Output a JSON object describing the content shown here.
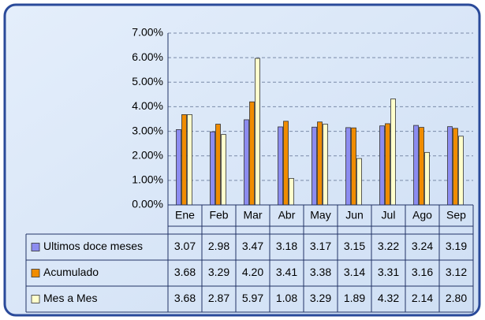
{
  "chart_data": {
    "type": "bar",
    "categories": [
      "Ene",
      "Feb",
      "Mar",
      "Abr",
      "May",
      "Jun",
      "Jul",
      "Ago",
      "Sep"
    ],
    "series": [
      {
        "name": "Ultimos doce meses",
        "color": "#8c8cf0",
        "values": [
          3.07,
          2.98,
          3.47,
          3.18,
          3.17,
          3.15,
          3.22,
          3.24,
          3.19
        ],
        "value_labels": [
          "3.07",
          "2.98",
          "3.47",
          "3.18",
          "3.17",
          "3.15",
          "3.22",
          "3.24",
          "3.19"
        ]
      },
      {
        "name": "Acumulado",
        "color": "#f08c00",
        "values": [
          3.68,
          3.29,
          4.2,
          3.41,
          3.38,
          3.14,
          3.31,
          3.16,
          3.12
        ],
        "value_labels": [
          "3.68",
          "3.29",
          "4.20",
          "3.41",
          "3.38",
          "3.14",
          "3.31",
          "3.16",
          "3.12"
        ]
      },
      {
        "name": "Mes a Mes",
        "color": "#ffffcc",
        "values": [
          3.68,
          2.87,
          5.97,
          1.08,
          3.29,
          1.89,
          4.32,
          2.14,
          2.8
        ],
        "value_labels": [
          "3.68",
          "2.87",
          "5.97",
          "1.08",
          "3.29",
          "1.89",
          "4.32",
          "2.14",
          "2.80"
        ]
      }
    ],
    "ylim": [
      0,
      7
    ],
    "yticks": [
      {
        "value": 0,
        "label": "0.00%"
      },
      {
        "value": 1,
        "label": "1.00%"
      },
      {
        "value": 2,
        "label": "2.00%"
      },
      {
        "value": 3,
        "label": "3.00%"
      },
      {
        "value": 4,
        "label": "4.00%"
      },
      {
        "value": 5,
        "label": "5.00%"
      },
      {
        "value": 6,
        "label": "6.00%"
      },
      {
        "value": 7,
        "label": "7.00%"
      }
    ],
    "grid": true
  }
}
